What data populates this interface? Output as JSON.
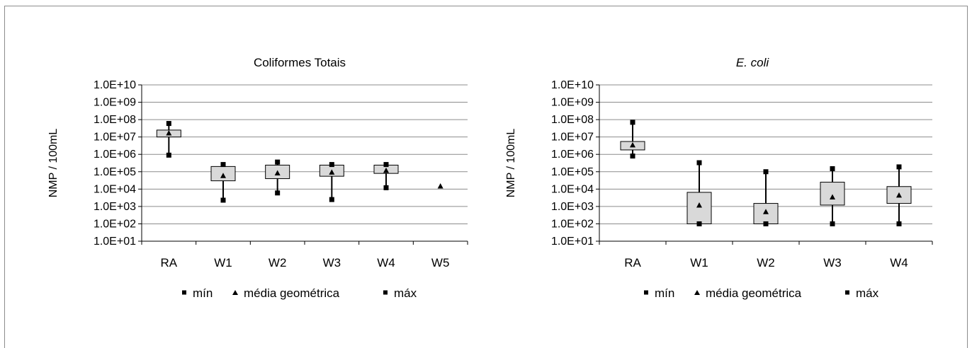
{
  "chart_data": [
    {
      "type": "box",
      "title": "Coliformes Totais",
      "title_italic": false,
      "ylabel": "NMP / 100mL",
      "yscale": "log",
      "ylim": [
        10,
        10000000000
      ],
      "ytick_labels": [
        "1.0E+01",
        "1.0E+02",
        "1.0E+03",
        "1.0E+04",
        "1.0E+05",
        "1.0E+06",
        "1.0E+07",
        "1.0E+08",
        "1.0E+09",
        "1.0E+10"
      ],
      "grid": true,
      "legend_position": "bottom",
      "legend": [
        "mín",
        "média geométrica",
        "máx"
      ],
      "categories": [
        "RA",
        "W1",
        "W2",
        "W3",
        "W4",
        "W5"
      ],
      "series": [
        {
          "name": "mín",
          "values": [
            900000,
            2300,
            6000,
            2500,
            12000,
            null
          ]
        },
        {
          "name": "média geométrica",
          "values": [
            17000000,
            60000,
            85000,
            95000,
            120000,
            15000
          ]
        },
        {
          "name": "máx",
          "values": [
            60000000,
            260000,
            360000,
            260000,
            260000,
            null
          ]
        }
      ],
      "box_ranges": [
        [
          10000000,
          25000000
        ],
        [
          30000,
          200000
        ],
        [
          40000,
          240000
        ],
        [
          55000,
          240000
        ],
        [
          80000,
          240000
        ],
        null
      ]
    },
    {
      "type": "box",
      "title": "E. coli",
      "title_italic": true,
      "ylabel": "NMP / 100mL",
      "yscale": "log",
      "ylim": [
        10,
        10000000000
      ],
      "ytick_labels": [
        "1.0E+01",
        "1.0E+02",
        "1.0E+03",
        "1.0E+04",
        "1.0E+05",
        "1.0E+06",
        "1.0E+07",
        "1.0E+08",
        "1.0E+09",
        "1.0E+10"
      ],
      "grid": true,
      "legend_position": "bottom",
      "legend": [
        "mín",
        "média geométrica",
        "máx"
      ],
      "categories": [
        "RA",
        "W1",
        "W2",
        "W3",
        "W4"
      ],
      "series": [
        {
          "name": "mín",
          "values": [
            800000,
            100,
            100,
            100,
            100
          ]
        },
        {
          "name": "média geométrica",
          "values": [
            3500000,
            1200,
            500,
            3500,
            4500
          ]
        },
        {
          "name": "máx",
          "values": [
            70000000,
            330000,
            100000,
            150000,
            190000
          ]
        }
      ],
      "box_ranges": [
        [
          1800000,
          5500000
        ],
        [
          100,
          6500
        ],
        [
          100,
          1500
        ],
        [
          1200,
          25000
        ],
        [
          1500,
          14000
        ]
      ]
    }
  ]
}
